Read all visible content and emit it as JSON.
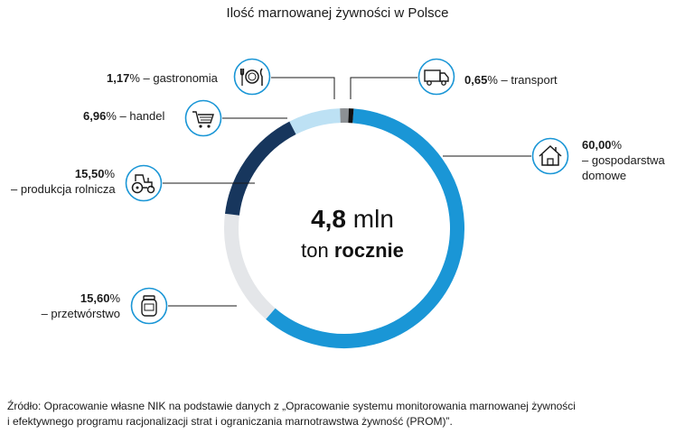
{
  "chart_data": {
    "type": "pie",
    "variant": "donut",
    "title": "Ilość marnowanej żywności w Polsce",
    "center_value": "4,8",
    "center_unit": "mln",
    "center_line2_prefix": "ton",
    "center_line2_bold": "rocznie",
    "slices": [
      {
        "value_label": "60,00",
        "value": 60.0,
        "name": "– gospodarstwa domowe",
        "color": "#1a96d6",
        "icon": "house-icon"
      },
      {
        "value_label": "15,60",
        "value": 15.6,
        "name": "– przetwórstwo",
        "color": "#e4e6e9",
        "icon": "jar-icon"
      },
      {
        "value_label": "15,50",
        "value": 15.5,
        "name": "– produkcja rolnicza",
        "color": "#17365d",
        "icon": "tractor-icon"
      },
      {
        "value_label": "6,96",
        "value": 6.96,
        "name": "– handel",
        "color": "#bde1f4",
        "icon": "cart-icon"
      },
      {
        "value_label": "1,17",
        "value": 1.17,
        "name": "– gastronomia",
        "color": "#8c9094",
        "icon": "plate-cutlery-icon"
      },
      {
        "value_label": "0,65",
        "value": 0.65,
        "name": "– transport",
        "color": "#111111",
        "icon": "truck-icon"
      }
    ],
    "percent_sign": "%"
  },
  "source": {
    "line1": "Źródło: Opracowanie własne NIK na  podstawie danych z  „Opracowanie systemu monitorowania marnowanej żywności",
    "line2": "i efektywnego programu racjonalizacji strat i ograniczania marnotrawstwa żywność (PROM)”."
  },
  "colors": {
    "icon_stroke": "#1a96d6",
    "leader": "#1a1a1a"
  }
}
